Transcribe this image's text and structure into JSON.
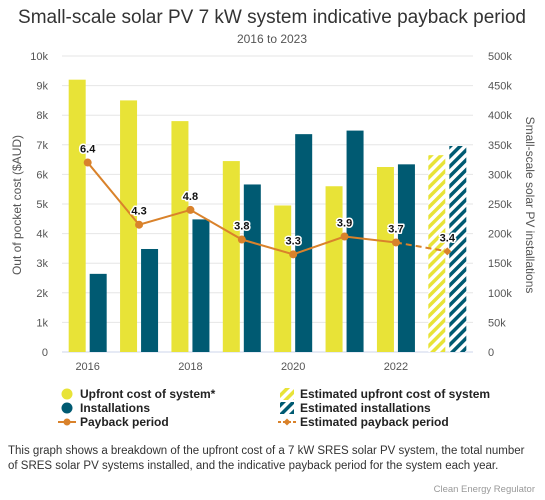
{
  "chart_data": {
    "type": "bar",
    "title": "Small-scale solar PV 7 kW system indicative payback period",
    "subtitle": "2016 to 2023",
    "categories": [
      "2016",
      "2017",
      "2018",
      "2019",
      "2020",
      "2021",
      "2022",
      "2023"
    ],
    "x_tick_labels": [
      "2016",
      "2018",
      "2020",
      "2022"
    ],
    "y_left": {
      "label": "Out of pocket cost ($AUD)",
      "ylim": [
        0,
        10000
      ],
      "ticks": [
        "0",
        "1k",
        "2k",
        "3k",
        "4k",
        "5k",
        "6k",
        "7k",
        "8k",
        "9k",
        "10k"
      ]
    },
    "y_right": {
      "label": "Small-scale solar PV installations",
      "ylim": [
        0,
        500000
      ],
      "ticks": [
        "0",
        "50k",
        "100k",
        "150k",
        "200k",
        "250k",
        "300k",
        "350k",
        "400k",
        "450k",
        "500k"
      ]
    },
    "series": [
      {
        "name": "Upfront cost of system*",
        "type": "bar",
        "axis": "left",
        "color": "#E8E337",
        "values": [
          9200,
          8500,
          7800,
          6450,
          4950,
          5600,
          6250,
          null
        ]
      },
      {
        "name": "Installations",
        "type": "bar",
        "axis": "right",
        "color": "#005A72",
        "values": [
          132000,
          174000,
          224000,
          283000,
          368000,
          374000,
          317000,
          null
        ]
      },
      {
        "name": "Payback period",
        "type": "line",
        "axis": "left",
        "color": "#D9822B",
        "values": [
          6.4,
          4.3,
          4.8,
          3.8,
          3.3,
          3.9,
          3.7,
          null
        ],
        "labels": [
          "6.4",
          "4.3",
          "4.8",
          "3.8",
          "3.3",
          "3.9",
          "3.7",
          null
        ],
        "plot_values": [
          6400,
          4300,
          4800,
          3800,
          3300,
          3900,
          3700,
          null
        ]
      },
      {
        "name": "Estimated upfront cost of system",
        "type": "bar",
        "axis": "left",
        "color": "#E8E337",
        "pattern": "hatched",
        "values": [
          null,
          null,
          null,
          null,
          null,
          null,
          null,
          6650
        ]
      },
      {
        "name": "Estimated installations",
        "type": "bar",
        "axis": "right",
        "color": "#005A72",
        "pattern": "hatched",
        "values": [
          null,
          null,
          null,
          null,
          null,
          null,
          null,
          348000
        ]
      },
      {
        "name": "Estimated payback period",
        "type": "line",
        "axis": "left",
        "color": "#D9822B",
        "dashed": true,
        "values": [
          null,
          null,
          null,
          null,
          null,
          null,
          3.7,
          3.4
        ],
        "labels": [
          null,
          null,
          null,
          null,
          null,
          null,
          null,
          "3.4"
        ],
        "plot_values": [
          null,
          null,
          null,
          null,
          null,
          null,
          3700,
          3400
        ]
      }
    ],
    "legend": {
      "position": "bottom",
      "items": [
        "Upfront cost of system*",
        "Estimated upfront cost of system",
        "Installations",
        "Estimated installations",
        "Payback period",
        "Estimated payback period"
      ]
    },
    "grid": true
  },
  "caption": "This graph shows a breakdown of the upfront cost of a 7 kW SRES solar PV system, the total number of SRES solar PV systems installed, and the indicative payback period for the system each year.",
  "credit": "Clean Energy Regulator",
  "colors": {
    "cost": "#E8E337",
    "installs": "#005A72",
    "payback": "#D9822B",
    "grid": "#e6e6e6"
  }
}
